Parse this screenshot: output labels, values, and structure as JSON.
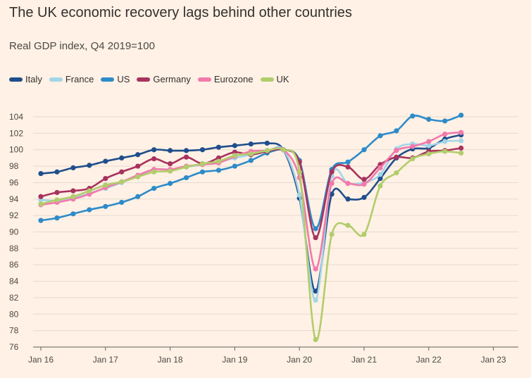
{
  "chart_data": {
    "type": "line",
    "title": "The UK economic recovery lags behind other countries",
    "subtitle": "Real GDP index, Q4 2019=100",
    "xlabel": "",
    "ylabel": "",
    "ylim": [
      76,
      105
    ],
    "yticks": [
      76,
      78,
      80,
      82,
      84,
      86,
      88,
      90,
      92,
      94,
      96,
      98,
      100,
      102,
      104
    ],
    "xticks": [
      "Jan 16",
      "Jan 17",
      "Jan 18",
      "Jan 19",
      "Jan 20",
      "Jan 21",
      "Jan 22",
      "Jan 23"
    ],
    "x": [
      "2016 Q1",
      "2016 Q2",
      "2016 Q3",
      "2016 Q4",
      "2017 Q1",
      "2017 Q2",
      "2017 Q3",
      "2017 Q4",
      "2018 Q1",
      "2018 Q2",
      "2018 Q3",
      "2018 Q4",
      "2019 Q1",
      "2019 Q2",
      "2019 Q3",
      "2019 Q4",
      "2020 Q1",
      "2020 Q2",
      "2020 Q3",
      "2020 Q4",
      "2021 Q1",
      "2021 Q2",
      "2021 Q3",
      "2021 Q4",
      "2022 Q1",
      "2022 Q2",
      "2022 Q3"
    ],
    "series": [
      {
        "name": "Italy",
        "color": "#1f4e8c",
        "values": [
          97.1,
          97.3,
          97.8,
          98.1,
          98.6,
          99.0,
          99.4,
          100.0,
          99.9,
          99.9,
          100.0,
          100.3,
          100.5,
          100.7,
          100.8,
          100.0,
          94.1,
          82.8,
          94.6,
          94.0,
          94.2,
          96.5,
          99.0,
          100.1,
          100.2,
          101.3,
          101.8
        ]
      },
      {
        "name": "France",
        "color": "#a3d5e8",
        "values": [
          93.9,
          93.8,
          94.1,
          94.7,
          95.3,
          96.0,
          96.8,
          97.6,
          97.6,
          97.9,
          98.2,
          98.5,
          99.0,
          99.4,
          99.8,
          100.0,
          94.5,
          81.7,
          96.8,
          95.9,
          96.0,
          97.0,
          100.1,
          100.7,
          100.5,
          101.0,
          101.1
        ]
      },
      {
        "name": "US",
        "color": "#2d8bc9",
        "values": [
          91.4,
          91.7,
          92.2,
          92.7,
          93.1,
          93.6,
          94.3,
          95.3,
          95.9,
          96.6,
          97.3,
          97.5,
          98.0,
          98.7,
          99.6,
          100.0,
          98.7,
          90.4,
          97.6,
          98.5,
          100.0,
          101.7,
          102.3,
          104.1,
          103.7,
          103.5,
          104.2
        ]
      },
      {
        "name": "Germany",
        "color": "#a8325d",
        "values": [
          94.3,
          94.8,
          95.0,
          95.3,
          96.5,
          97.3,
          98.0,
          98.9,
          98.3,
          99.1,
          98.3,
          99.0,
          99.7,
          99.4,
          99.8,
          100.0,
          98.5,
          89.3,
          97.3,
          97.9,
          96.4,
          98.2,
          99.1,
          99.0,
          99.8,
          99.9,
          100.2
        ]
      },
      {
        "name": "Eurozone",
        "color": "#f279ac",
        "values": [
          93.3,
          93.6,
          94.0,
          94.6,
          95.4,
          96.1,
          96.9,
          97.6,
          97.6,
          98.0,
          98.2,
          98.4,
          99.2,
          99.8,
          99.9,
          100.0,
          96.6,
          85.5,
          95.9,
          95.9,
          95.8,
          97.8,
          99.9,
          100.4,
          101.0,
          101.9,
          102.1
        ]
      },
      {
        "name": "UK",
        "color": "#b1cd6b",
        "values": [
          93.4,
          93.9,
          94.3,
          95.0,
          95.7,
          96.1,
          96.7,
          97.3,
          97.4,
          97.9,
          98.3,
          98.6,
          99.3,
          99.5,
          99.9,
          100.0,
          97.3,
          76.9,
          89.7,
          90.8,
          89.7,
          95.6,
          97.2,
          98.9,
          99.5,
          99.8,
          99.6
        ]
      }
    ]
  }
}
